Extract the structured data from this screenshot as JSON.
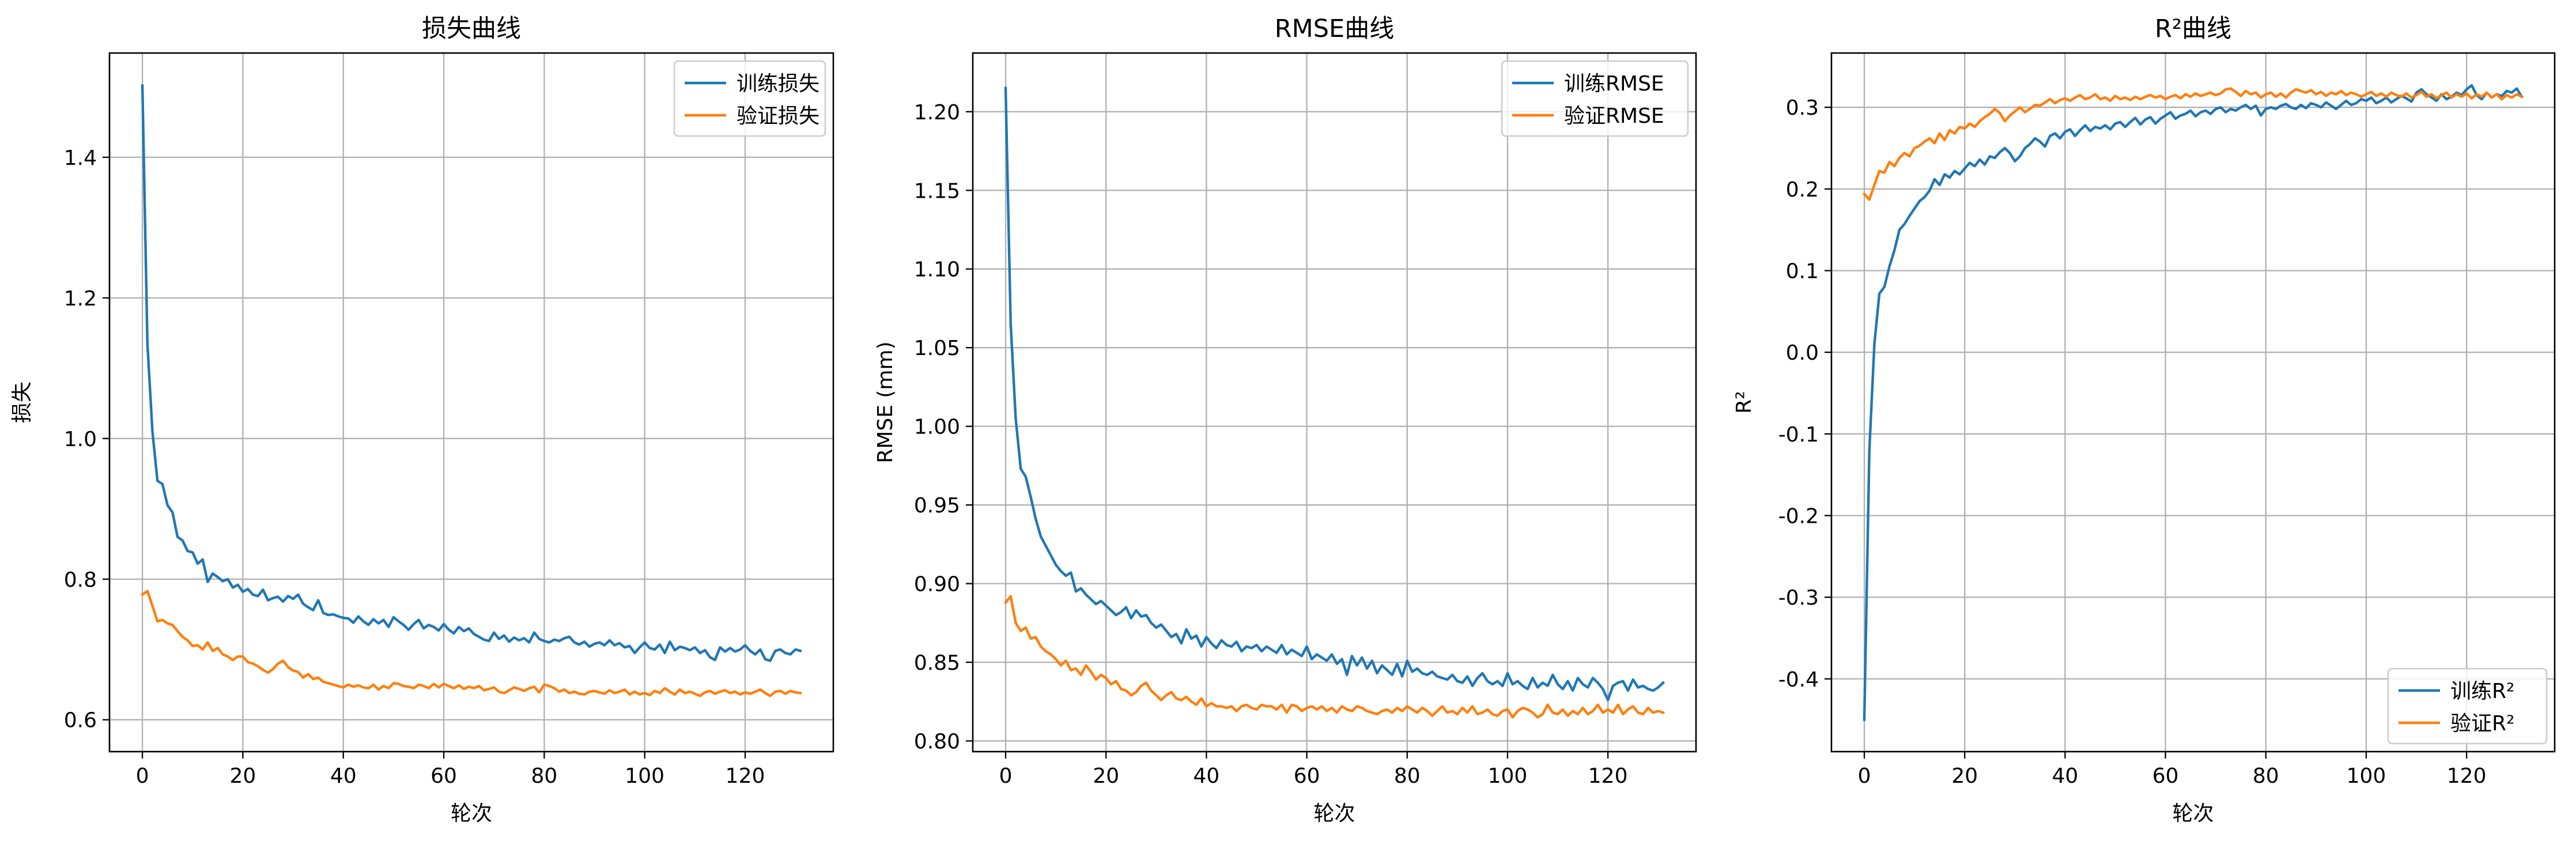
{
  "chart_data": [
    {
      "type": "line",
      "title": "损失曲线",
      "xlabel": "轮次",
      "ylabel": "损失",
      "xlim": [
        -6.55,
        137.55
      ],
      "ylim": [
        0.5547,
        1.5483
      ],
      "xticks": [
        0,
        20,
        40,
        60,
        80,
        100,
        120
      ],
      "yticks": [
        0.6,
        0.8,
        1.0,
        1.2,
        1.4
      ],
      "ytick_decimals": 1,
      "grid": true,
      "legend_position": "upper right",
      "series": [
        {
          "name": "训练损失",
          "color": "#1f77b4",
          "x_start": 0,
          "x_step": 1,
          "values": [
            1.502,
            1.135,
            1.01,
            0.94,
            0.935,
            0.905,
            0.895,
            0.86,
            0.855,
            0.84,
            0.838,
            0.822,
            0.828,
            0.796,
            0.808,
            0.803,
            0.797,
            0.8,
            0.788,
            0.792,
            0.782,
            0.786,
            0.778,
            0.776,
            0.785,
            0.77,
            0.773,
            0.775,
            0.768,
            0.776,
            0.772,
            0.778,
            0.765,
            0.76,
            0.756,
            0.77,
            0.752,
            0.749,
            0.75,
            0.747,
            0.745,
            0.744,
            0.738,
            0.747,
            0.74,
            0.735,
            0.743,
            0.737,
            0.742,
            0.732,
            0.746,
            0.74,
            0.735,
            0.728,
            0.736,
            0.742,
            0.73,
            0.735,
            0.732,
            0.727,
            0.736,
            0.728,
            0.723,
            0.732,
            0.726,
            0.73,
            0.722,
            0.718,
            0.714,
            0.712,
            0.724,
            0.715,
            0.72,
            0.711,
            0.717,
            0.713,
            0.716,
            0.71,
            0.724,
            0.715,
            0.712,
            0.71,
            0.714,
            0.712,
            0.716,
            0.718,
            0.71,
            0.707,
            0.711,
            0.704,
            0.708,
            0.71,
            0.706,
            0.713,
            0.706,
            0.709,
            0.703,
            0.705,
            0.695,
            0.703,
            0.71,
            0.702,
            0.7,
            0.707,
            0.695,
            0.711,
            0.699,
            0.704,
            0.702,
            0.699,
            0.703,
            0.695,
            0.699,
            0.689,
            0.685,
            0.703,
            0.697,
            0.702,
            0.697,
            0.7,
            0.706,
            0.698,
            0.693,
            0.7,
            0.686,
            0.684,
            0.698,
            0.7,
            0.695,
            0.693,
            0.7,
            0.698
          ]
        },
        {
          "name": "验证损失",
          "color": "#ff7f0e",
          "x_start": 0,
          "x_step": 1,
          "values": [
            0.778,
            0.783,
            0.762,
            0.74,
            0.742,
            0.737,
            0.735,
            0.726,
            0.718,
            0.713,
            0.705,
            0.706,
            0.7,
            0.71,
            0.698,
            0.702,
            0.693,
            0.69,
            0.685,
            0.69,
            0.69,
            0.682,
            0.68,
            0.676,
            0.671,
            0.667,
            0.672,
            0.68,
            0.684,
            0.675,
            0.67,
            0.668,
            0.66,
            0.665,
            0.658,
            0.66,
            0.654,
            0.652,
            0.65,
            0.648,
            0.646,
            0.65,
            0.647,
            0.649,
            0.646,
            0.645,
            0.65,
            0.643,
            0.648,
            0.645,
            0.652,
            0.651,
            0.648,
            0.647,
            0.645,
            0.65,
            0.648,
            0.645,
            0.651,
            0.646,
            0.651,
            0.648,
            0.645,
            0.649,
            0.644,
            0.647,
            0.645,
            0.648,
            0.642,
            0.644,
            0.646,
            0.64,
            0.638,
            0.642,
            0.646,
            0.644,
            0.641,
            0.645,
            0.647,
            0.639,
            0.65,
            0.648,
            0.645,
            0.64,
            0.643,
            0.638,
            0.64,
            0.637,
            0.636,
            0.64,
            0.641,
            0.639,
            0.637,
            0.642,
            0.638,
            0.64,
            0.643,
            0.636,
            0.64,
            0.636,
            0.638,
            0.635,
            0.641,
            0.638,
            0.645,
            0.64,
            0.636,
            0.643,
            0.638,
            0.64,
            0.637,
            0.634,
            0.639,
            0.641,
            0.637,
            0.64,
            0.642,
            0.638,
            0.64,
            0.636,
            0.639,
            0.637,
            0.64,
            0.643,
            0.638,
            0.634,
            0.64,
            0.641,
            0.637,
            0.641,
            0.639,
            0.638
          ]
        }
      ]
    },
    {
      "type": "line",
      "title": "RMSE曲线",
      "xlabel": "轮次",
      "ylabel": "RMSE (mm)",
      "xlim": [
        -6.55,
        137.55
      ],
      "ylim": [
        0.7932,
        1.2373
      ],
      "xticks": [
        0,
        20,
        40,
        60,
        80,
        100,
        120
      ],
      "yticks": [
        0.8,
        0.85,
        0.9,
        0.95,
        1.0,
        1.05,
        1.1,
        1.15,
        1.2
      ],
      "ytick_decimals": 2,
      "grid": true,
      "legend_position": "upper right",
      "series": [
        {
          "name": "训练RMSE",
          "color": "#1f77b4",
          "x_start": 0,
          "x_step": 1,
          "values": [
            1.215,
            1.065,
            1.005,
            0.973,
            0.968,
            0.955,
            0.941,
            0.93,
            0.924,
            0.918,
            0.912,
            0.908,
            0.905,
            0.907,
            0.895,
            0.897,
            0.893,
            0.89,
            0.887,
            0.889,
            0.886,
            0.883,
            0.88,
            0.882,
            0.885,
            0.878,
            0.883,
            0.879,
            0.88,
            0.875,
            0.872,
            0.874,
            0.87,
            0.866,
            0.868,
            0.862,
            0.871,
            0.865,
            0.867,
            0.86,
            0.866,
            0.862,
            0.859,
            0.864,
            0.861,
            0.86,
            0.863,
            0.857,
            0.86,
            0.859,
            0.861,
            0.857,
            0.86,
            0.858,
            0.856,
            0.861,
            0.855,
            0.858,
            0.856,
            0.854,
            0.86,
            0.852,
            0.855,
            0.853,
            0.851,
            0.855,
            0.849,
            0.852,
            0.842,
            0.854,
            0.848,
            0.853,
            0.846,
            0.851,
            0.843,
            0.848,
            0.845,
            0.842,
            0.849,
            0.841,
            0.851,
            0.844,
            0.846,
            0.843,
            0.842,
            0.844,
            0.841,
            0.84,
            0.839,
            0.842,
            0.838,
            0.837,
            0.841,
            0.835,
            0.84,
            0.843,
            0.838,
            0.836,
            0.838,
            0.835,
            0.843,
            0.836,
            0.838,
            0.835,
            0.833,
            0.84,
            0.834,
            0.837,
            0.835,
            0.842,
            0.836,
            0.833,
            0.838,
            0.832,
            0.84,
            0.836,
            0.834,
            0.84,
            0.837,
            0.833,
            0.826,
            0.835,
            0.837,
            0.838,
            0.832,
            0.839,
            0.834,
            0.835,
            0.833,
            0.832,
            0.834,
            0.837
          ]
        },
        {
          "name": "验证RMSE",
          "color": "#ff7f0e",
          "x_start": 0,
          "x_step": 1,
          "values": [
            0.888,
            0.892,
            0.875,
            0.87,
            0.872,
            0.865,
            0.866,
            0.86,
            0.857,
            0.855,
            0.852,
            0.848,
            0.851,
            0.845,
            0.846,
            0.842,
            0.848,
            0.844,
            0.839,
            0.842,
            0.84,
            0.836,
            0.838,
            0.833,
            0.832,
            0.829,
            0.831,
            0.835,
            0.837,
            0.832,
            0.829,
            0.826,
            0.829,
            0.831,
            0.827,
            0.826,
            0.828,
            0.825,
            0.823,
            0.827,
            0.822,
            0.824,
            0.822,
            0.822,
            0.821,
            0.822,
            0.819,
            0.822,
            0.823,
            0.821,
            0.82,
            0.823,
            0.822,
            0.822,
            0.82,
            0.823,
            0.818,
            0.823,
            0.822,
            0.819,
            0.821,
            0.822,
            0.82,
            0.822,
            0.819,
            0.821,
            0.818,
            0.822,
            0.82,
            0.819,
            0.822,
            0.821,
            0.819,
            0.818,
            0.817,
            0.819,
            0.82,
            0.818,
            0.821,
            0.819,
            0.822,
            0.82,
            0.818,
            0.821,
            0.819,
            0.816,
            0.819,
            0.822,
            0.818,
            0.819,
            0.817,
            0.821,
            0.818,
            0.822,
            0.817,
            0.818,
            0.82,
            0.817,
            0.816,
            0.819,
            0.82,
            0.815,
            0.819,
            0.821,
            0.82,
            0.818,
            0.815,
            0.817,
            0.823,
            0.818,
            0.817,
            0.82,
            0.816,
            0.819,
            0.817,
            0.821,
            0.817,
            0.819,
            0.823,
            0.818,
            0.82,
            0.818,
            0.823,
            0.817,
            0.82,
            0.822,
            0.818,
            0.817,
            0.821,
            0.818,
            0.819,
            0.818
          ]
        }
      ]
    },
    {
      "type": "line",
      "title": "R²曲线",
      "xlabel": "轮次",
      "ylabel": "R²",
      "xlim": [
        -6.55,
        137.55
      ],
      "ylim": [
        -0.4891,
        0.3665
      ],
      "xticks": [
        0,
        20,
        40,
        60,
        80,
        100,
        120
      ],
      "yticks": [
        -0.4,
        -0.3,
        -0.2,
        -0.1,
        0.0,
        0.1,
        0.2,
        0.3
      ],
      "ytick_decimals": 1,
      "grid": true,
      "legend_position": "lower right",
      "series": [
        {
          "name": "训练R²",
          "color": "#1f77b4",
          "x_start": 0,
          "x_step": 1,
          "values": [
            -0.45,
            -0.12,
            0.01,
            0.072,
            0.08,
            0.105,
            0.125,
            0.15,
            0.157,
            0.167,
            0.176,
            0.185,
            0.19,
            0.198,
            0.212,
            0.205,
            0.218,
            0.214,
            0.222,
            0.218,
            0.225,
            0.232,
            0.228,
            0.236,
            0.23,
            0.24,
            0.238,
            0.245,
            0.25,
            0.244,
            0.234,
            0.24,
            0.25,
            0.255,
            0.262,
            0.258,
            0.252,
            0.265,
            0.268,
            0.262,
            0.27,
            0.273,
            0.265,
            0.272,
            0.278,
            0.271,
            0.276,
            0.274,
            0.278,
            0.273,
            0.28,
            0.282,
            0.276,
            0.282,
            0.287,
            0.279,
            0.285,
            0.288,
            0.28,
            0.286,
            0.29,
            0.294,
            0.286,
            0.29,
            0.292,
            0.296,
            0.289,
            0.294,
            0.296,
            0.292,
            0.298,
            0.3,
            0.294,
            0.298,
            0.296,
            0.3,
            0.303,
            0.298,
            0.302,
            0.29,
            0.298,
            0.3,
            0.298,
            0.302,
            0.304,
            0.3,
            0.298,
            0.303,
            0.299,
            0.305,
            0.303,
            0.3,
            0.306,
            0.302,
            0.298,
            0.303,
            0.308,
            0.303,
            0.305,
            0.31,
            0.308,
            0.312,
            0.305,
            0.308,
            0.312,
            0.306,
            0.31,
            0.314,
            0.311,
            0.307,
            0.318,
            0.322,
            0.316,
            0.312,
            0.308,
            0.316,
            0.31,
            0.313,
            0.318,
            0.315,
            0.322,
            0.327,
            0.315,
            0.31,
            0.318,
            0.312,
            0.316,
            0.314,
            0.32,
            0.318,
            0.323,
            0.313
          ]
        },
        {
          "name": "验证R²",
          "color": "#ff7f0e",
          "x_start": 0,
          "x_step": 1,
          "values": [
            0.194,
            0.187,
            0.205,
            0.222,
            0.22,
            0.233,
            0.228,
            0.238,
            0.244,
            0.24,
            0.25,
            0.253,
            0.258,
            0.262,
            0.256,
            0.268,
            0.26,
            0.272,
            0.268,
            0.276,
            0.274,
            0.28,
            0.276,
            0.283,
            0.288,
            0.292,
            0.298,
            0.293,
            0.283,
            0.29,
            0.295,
            0.3,
            0.294,
            0.298,
            0.303,
            0.302,
            0.306,
            0.31,
            0.305,
            0.309,
            0.311,
            0.308,
            0.312,
            0.315,
            0.31,
            0.312,
            0.316,
            0.31,
            0.312,
            0.308,
            0.314,
            0.31,
            0.312,
            0.309,
            0.313,
            0.31,
            0.313,
            0.315,
            0.312,
            0.314,
            0.31,
            0.313,
            0.315,
            0.311,
            0.316,
            0.313,
            0.317,
            0.314,
            0.316,
            0.318,
            0.315,
            0.317,
            0.322,
            0.323,
            0.319,
            0.314,
            0.32,
            0.316,
            0.318,
            0.312,
            0.316,
            0.318,
            0.313,
            0.317,
            0.312,
            0.318,
            0.322,
            0.32,
            0.318,
            0.321,
            0.316,
            0.319,
            0.314,
            0.318,
            0.316,
            0.32,
            0.315,
            0.318,
            0.316,
            0.313,
            0.316,
            0.319,
            0.314,
            0.317,
            0.313,
            0.318,
            0.315,
            0.313,
            0.317,
            0.312,
            0.315,
            0.319,
            0.313,
            0.316,
            0.311,
            0.315,
            0.318,
            0.312,
            0.316,
            0.313,
            0.317,
            0.311,
            0.316,
            0.313,
            0.318,
            0.312,
            0.316,
            0.31,
            0.315,
            0.312,
            0.316,
            0.313
          ]
        }
      ]
    }
  ]
}
